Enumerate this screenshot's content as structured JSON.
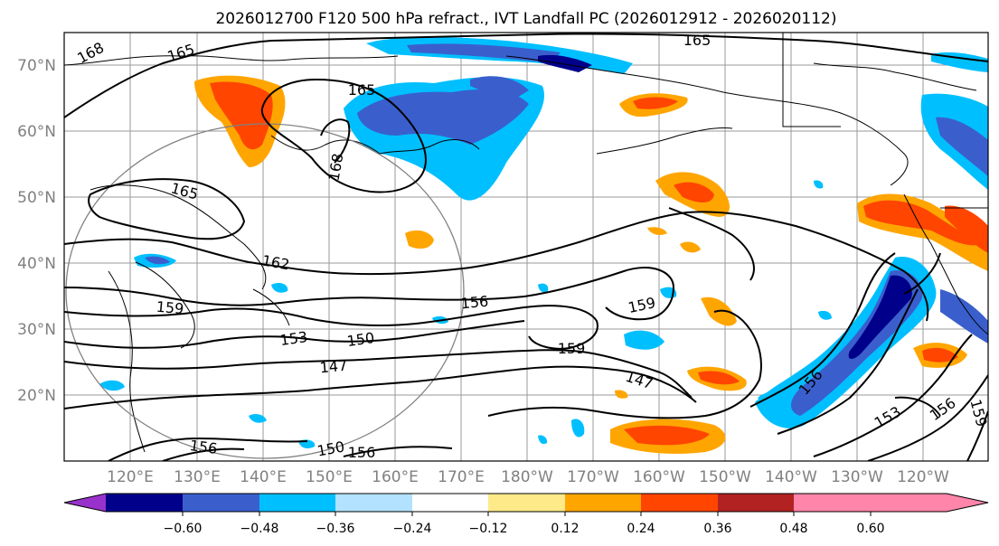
{
  "title": "2026012700 F120 500 hPa refract., IVT Landfall PC (2026012912 - 2026020112)",
  "lat_labels": [
    "70°N",
    "60°N",
    "50°N",
    "40°N",
    "30°N",
    "20°N"
  ],
  "lon_labels": [
    "120°E",
    "130°E",
    "140°E",
    "150°E",
    "160°E",
    "170°E",
    "180°W",
    "170°W",
    "160°W",
    "150°W",
    "140°W",
    "130°W",
    "120°W"
  ],
  "colorbar": {
    "ticks": [
      "−0.60",
      "−0.48",
      "−0.36",
      "−0.24",
      "−0.12",
      "0.12",
      "0.24",
      "0.36",
      "0.48",
      "0.60"
    ],
    "colors": [
      "#9932cc",
      "#00008b",
      "#3a5fcd",
      "#00bfff",
      "#b2e2ff",
      "#ffffff",
      "#ffea8a",
      "#ffa500",
      "#ff4500",
      "#b22222",
      "#ff85aa"
    ]
  },
  "contour_labels": {
    "c168a": "168",
    "c165a": "165",
    "c165b": "165",
    "c165c": "165",
    "c168b": "168",
    "c165d": "165",
    "c162": "162",
    "c159a": "159",
    "c156a": "156",
    "c159b": "159",
    "c153": "153",
    "c150": "150",
    "c159c": "159",
    "c147a": "147",
    "c147b": "147",
    "c156b": "156",
    "c156c": "156",
    "c150b": "150",
    "c156d": "156",
    "c153b": "153",
    "c156e": "156",
    "c159d": "159"
  }
}
